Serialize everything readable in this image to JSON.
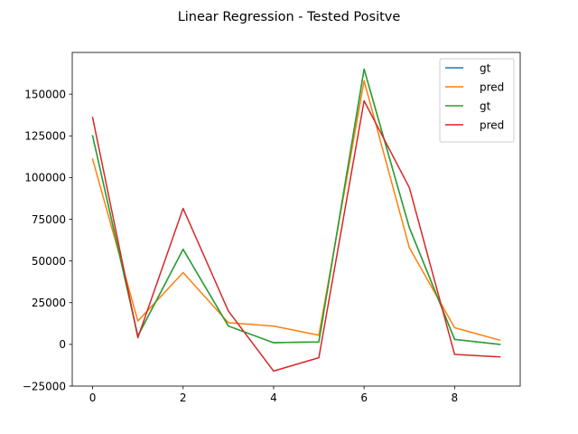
{
  "chart_data": {
    "type": "line",
    "title": "Linear Regression - Tested Positve",
    "xlabel": "",
    "ylabel": "",
    "x": [
      0,
      1,
      2,
      3,
      4,
      5,
      6,
      7,
      8,
      9
    ],
    "xlim": [
      -0.45,
      9.45
    ],
    "ylim": [
      -25000,
      175000
    ],
    "x_ticks": [
      0,
      2,
      4,
      6,
      8
    ],
    "x_tick_labels": [
      "0",
      "2",
      "4",
      "6",
      "8"
    ],
    "y_ticks": [
      -25000,
      0,
      25000,
      50000,
      75000,
      100000,
      125000,
      150000
    ],
    "y_tick_labels": [
      "−25000",
      "0",
      "25000",
      "50000",
      "75000",
      "100000",
      "125000",
      "150000"
    ],
    "grid": false,
    "legend_position": "top-right",
    "series": [
      {
        "name": "gt",
        "color": "#1f77b4",
        "values": [
          125000,
          5000,
          57000,
          11000,
          1000,
          1500,
          165000,
          70000,
          3000,
          0
        ]
      },
      {
        "name": "pred",
        "color": "#ff7f0e",
        "values": [
          111000,
          14000,
          43000,
          13000,
          11000,
          5500,
          158000,
          58000,
          10000,
          2500
        ]
      },
      {
        "name": "gt",
        "color": "#2ca02c",
        "values": [
          125000,
          5000,
          57000,
          11000,
          1000,
          1500,
          165000,
          70000,
          3000,
          0
        ]
      },
      {
        "name": "pred",
        "color": "#d62728",
        "values": [
          136000,
          4000,
          81500,
          20000,
          -16000,
          -8000,
          146000,
          94000,
          -6000,
          -7500
        ]
      }
    ]
  }
}
